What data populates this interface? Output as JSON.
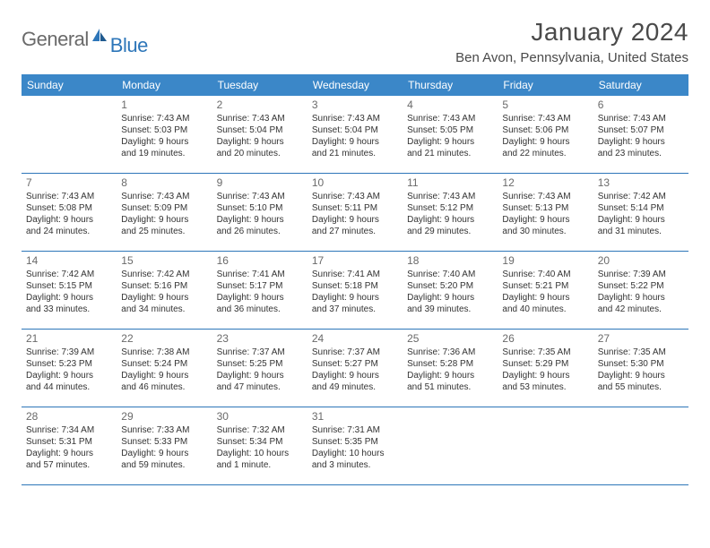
{
  "logo": {
    "text_gray": "General",
    "text_blue": "Blue"
  },
  "title": "January 2024",
  "location": "Ben Avon, Pennsylvania, United States",
  "colors": {
    "header_bg": "#3b87c8",
    "header_text": "#ffffff",
    "border": "#2d76b9",
    "title_text": "#4a4a4a",
    "daynum_text": "#6a6a6a",
    "body_text": "#333333",
    "logo_gray": "#6a6a6a",
    "logo_blue": "#2d76b9"
  },
  "day_names": [
    "Sunday",
    "Monday",
    "Tuesday",
    "Wednesday",
    "Thursday",
    "Friday",
    "Saturday"
  ],
  "weeks": [
    [
      null,
      {
        "n": "1",
        "sr": "Sunrise: 7:43 AM",
        "ss": "Sunset: 5:03 PM",
        "d1": "Daylight: 9 hours",
        "d2": "and 19 minutes."
      },
      {
        "n": "2",
        "sr": "Sunrise: 7:43 AM",
        "ss": "Sunset: 5:04 PM",
        "d1": "Daylight: 9 hours",
        "d2": "and 20 minutes."
      },
      {
        "n": "3",
        "sr": "Sunrise: 7:43 AM",
        "ss": "Sunset: 5:04 PM",
        "d1": "Daylight: 9 hours",
        "d2": "and 21 minutes."
      },
      {
        "n": "4",
        "sr": "Sunrise: 7:43 AM",
        "ss": "Sunset: 5:05 PM",
        "d1": "Daylight: 9 hours",
        "d2": "and 21 minutes."
      },
      {
        "n": "5",
        "sr": "Sunrise: 7:43 AM",
        "ss": "Sunset: 5:06 PM",
        "d1": "Daylight: 9 hours",
        "d2": "and 22 minutes."
      },
      {
        "n": "6",
        "sr": "Sunrise: 7:43 AM",
        "ss": "Sunset: 5:07 PM",
        "d1": "Daylight: 9 hours",
        "d2": "and 23 minutes."
      }
    ],
    [
      {
        "n": "7",
        "sr": "Sunrise: 7:43 AM",
        "ss": "Sunset: 5:08 PM",
        "d1": "Daylight: 9 hours",
        "d2": "and 24 minutes."
      },
      {
        "n": "8",
        "sr": "Sunrise: 7:43 AM",
        "ss": "Sunset: 5:09 PM",
        "d1": "Daylight: 9 hours",
        "d2": "and 25 minutes."
      },
      {
        "n": "9",
        "sr": "Sunrise: 7:43 AM",
        "ss": "Sunset: 5:10 PM",
        "d1": "Daylight: 9 hours",
        "d2": "and 26 minutes."
      },
      {
        "n": "10",
        "sr": "Sunrise: 7:43 AM",
        "ss": "Sunset: 5:11 PM",
        "d1": "Daylight: 9 hours",
        "d2": "and 27 minutes."
      },
      {
        "n": "11",
        "sr": "Sunrise: 7:43 AM",
        "ss": "Sunset: 5:12 PM",
        "d1": "Daylight: 9 hours",
        "d2": "and 29 minutes."
      },
      {
        "n": "12",
        "sr": "Sunrise: 7:43 AM",
        "ss": "Sunset: 5:13 PM",
        "d1": "Daylight: 9 hours",
        "d2": "and 30 minutes."
      },
      {
        "n": "13",
        "sr": "Sunrise: 7:42 AM",
        "ss": "Sunset: 5:14 PM",
        "d1": "Daylight: 9 hours",
        "d2": "and 31 minutes."
      }
    ],
    [
      {
        "n": "14",
        "sr": "Sunrise: 7:42 AM",
        "ss": "Sunset: 5:15 PM",
        "d1": "Daylight: 9 hours",
        "d2": "and 33 minutes."
      },
      {
        "n": "15",
        "sr": "Sunrise: 7:42 AM",
        "ss": "Sunset: 5:16 PM",
        "d1": "Daylight: 9 hours",
        "d2": "and 34 minutes."
      },
      {
        "n": "16",
        "sr": "Sunrise: 7:41 AM",
        "ss": "Sunset: 5:17 PM",
        "d1": "Daylight: 9 hours",
        "d2": "and 36 minutes."
      },
      {
        "n": "17",
        "sr": "Sunrise: 7:41 AM",
        "ss": "Sunset: 5:18 PM",
        "d1": "Daylight: 9 hours",
        "d2": "and 37 minutes."
      },
      {
        "n": "18",
        "sr": "Sunrise: 7:40 AM",
        "ss": "Sunset: 5:20 PM",
        "d1": "Daylight: 9 hours",
        "d2": "and 39 minutes."
      },
      {
        "n": "19",
        "sr": "Sunrise: 7:40 AM",
        "ss": "Sunset: 5:21 PM",
        "d1": "Daylight: 9 hours",
        "d2": "and 40 minutes."
      },
      {
        "n": "20",
        "sr": "Sunrise: 7:39 AM",
        "ss": "Sunset: 5:22 PM",
        "d1": "Daylight: 9 hours",
        "d2": "and 42 minutes."
      }
    ],
    [
      {
        "n": "21",
        "sr": "Sunrise: 7:39 AM",
        "ss": "Sunset: 5:23 PM",
        "d1": "Daylight: 9 hours",
        "d2": "and 44 minutes."
      },
      {
        "n": "22",
        "sr": "Sunrise: 7:38 AM",
        "ss": "Sunset: 5:24 PM",
        "d1": "Daylight: 9 hours",
        "d2": "and 46 minutes."
      },
      {
        "n": "23",
        "sr": "Sunrise: 7:37 AM",
        "ss": "Sunset: 5:25 PM",
        "d1": "Daylight: 9 hours",
        "d2": "and 47 minutes."
      },
      {
        "n": "24",
        "sr": "Sunrise: 7:37 AM",
        "ss": "Sunset: 5:27 PM",
        "d1": "Daylight: 9 hours",
        "d2": "and 49 minutes."
      },
      {
        "n": "25",
        "sr": "Sunrise: 7:36 AM",
        "ss": "Sunset: 5:28 PM",
        "d1": "Daylight: 9 hours",
        "d2": "and 51 minutes."
      },
      {
        "n": "26",
        "sr": "Sunrise: 7:35 AM",
        "ss": "Sunset: 5:29 PM",
        "d1": "Daylight: 9 hours",
        "d2": "and 53 minutes."
      },
      {
        "n": "27",
        "sr": "Sunrise: 7:35 AM",
        "ss": "Sunset: 5:30 PM",
        "d1": "Daylight: 9 hours",
        "d2": "and 55 minutes."
      }
    ],
    [
      {
        "n": "28",
        "sr": "Sunrise: 7:34 AM",
        "ss": "Sunset: 5:31 PM",
        "d1": "Daylight: 9 hours",
        "d2": "and 57 minutes."
      },
      {
        "n": "29",
        "sr": "Sunrise: 7:33 AM",
        "ss": "Sunset: 5:33 PM",
        "d1": "Daylight: 9 hours",
        "d2": "and 59 minutes."
      },
      {
        "n": "30",
        "sr": "Sunrise: 7:32 AM",
        "ss": "Sunset: 5:34 PM",
        "d1": "Daylight: 10 hours",
        "d2": "and 1 minute."
      },
      {
        "n": "31",
        "sr": "Sunrise: 7:31 AM",
        "ss": "Sunset: 5:35 PM",
        "d1": "Daylight: 10 hours",
        "d2": "and 3 minutes."
      },
      null,
      null,
      null
    ]
  ]
}
